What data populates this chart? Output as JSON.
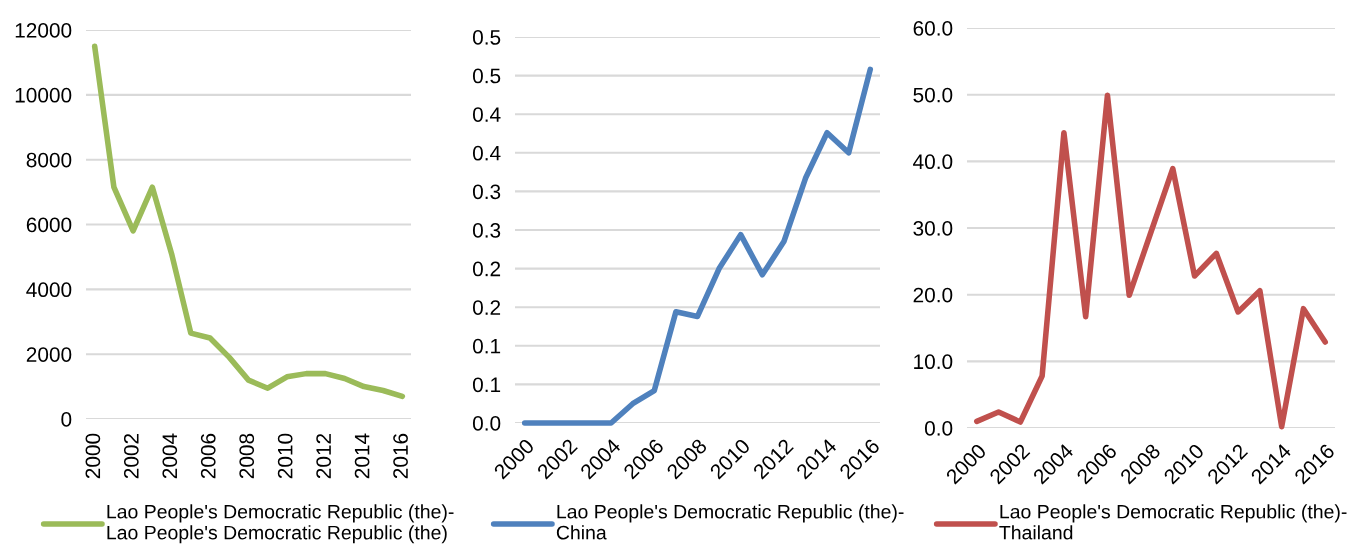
{
  "chart_data": [
    {
      "type": "line",
      "categories": [
        "2000",
        null,
        "2002",
        null,
        "2004",
        null,
        "2006",
        null,
        "2008",
        null,
        "2010",
        null,
        "2012",
        null,
        "2014",
        null,
        "2016"
      ],
      "series": [
        {
          "name": "Lao People's Democratic Republic (the)-\nLao People's Democratic Republic (the)",
          "color": "#9bbb59",
          "values": [
            11500,
            7150,
            5800,
            7150,
            5100,
            2650,
            2500,
            1900,
            1200,
            950,
            1300,
            1400,
            1400,
            1250,
            1000,
            880,
            700
          ]
        }
      ],
      "ylim": [
        0,
        12000
      ],
      "yticks": [
        0,
        2000,
        4000,
        6000,
        8000,
        10000,
        12000
      ],
      "grid": "y",
      "legend": "bottom",
      "marker": "none",
      "line_style": "solid"
    },
    {
      "type": "line",
      "categories": [
        "2000",
        null,
        "2002",
        null,
        "2004",
        null,
        "2006",
        null,
        "2008",
        null,
        "2010",
        null,
        "2012",
        null,
        "2014",
        null,
        "2016"
      ],
      "series": [
        {
          "name": "Lao People's Democratic Republic (the)-\nChina",
          "color": "#4f81bd",
          "values": [
            0,
            0,
            0,
            0,
            0,
            0.025,
            0.042,
            0.144,
            0.138,
            0.2,
            0.244,
            0.192,
            0.235,
            0.317,
            0.376,
            0.35,
            0.458
          ]
        }
      ],
      "ylim": [
        0,
        0.5
      ],
      "yticks": [
        {
          "value": 0,
          "label": "0.0"
        },
        {
          "value": 0.05,
          "label": "0.1"
        },
        {
          "value": 0.1,
          "label": "0.1"
        },
        {
          "value": 0.15,
          "label": "0.2"
        },
        {
          "value": 0.2,
          "label": "0.2"
        },
        {
          "value": 0.25,
          "label": "0.3"
        },
        {
          "value": 0.3,
          "label": "0.3"
        },
        {
          "value": 0.35,
          "label": "0.4"
        },
        {
          "value": 0.4,
          "label": "0.4"
        },
        {
          "value": 0.45,
          "label": "0.5"
        },
        {
          "value": 0.5,
          "label": "0.5"
        }
      ],
      "grid": "y",
      "legend": "bottom",
      "marker": "none",
      "line_style": "solid"
    },
    {
      "type": "line",
      "categories": [
        "2000",
        null,
        "2002",
        null,
        "2004",
        null,
        "2006",
        null,
        "2008",
        null,
        "2010",
        null,
        "2012",
        null,
        "2014",
        null,
        "2016"
      ],
      "series": [
        {
          "name": "Lao People's Democratic Republic (the)-\nThailand",
          "color": "#c0504d",
          "values": [
            1.0,
            2.4,
            0.9,
            7.8,
            44.3,
            16.7,
            49.9,
            19.9,
            29.4,
            38.9,
            22.8,
            26.2,
            17.4,
            20.6,
            0.2,
            17.9,
            12.9
          ]
        }
      ],
      "ylim": [
        0,
        60
      ],
      "yticks": [
        {
          "value": 0,
          "label": "0.0"
        },
        {
          "value": 10,
          "label": "10.0"
        },
        {
          "value": 20,
          "label": "20.0"
        },
        {
          "value": 30,
          "label": "30.0"
        },
        {
          "value": 40,
          "label": "40.0"
        },
        {
          "value": 50,
          "label": "50.0"
        },
        {
          "value": 60,
          "label": "60.0"
        }
      ],
      "grid": "y",
      "legend": "bottom",
      "marker": "none",
      "line_style": "solid"
    }
  ]
}
